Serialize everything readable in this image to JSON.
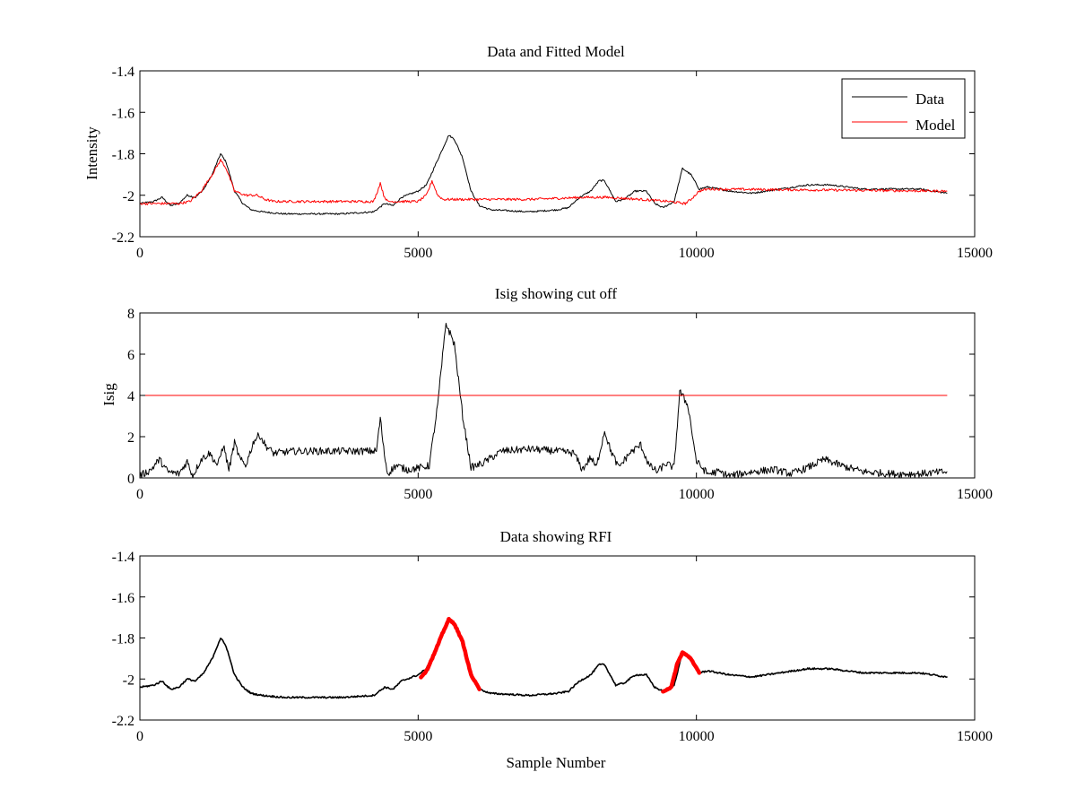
{
  "colors": {
    "data": "#000000",
    "model": "#ff0000",
    "highlight": "#ff0000",
    "axes": "#000000",
    "background": "#ffffff"
  },
  "chart_data": [
    {
      "type": "line",
      "title": "Data and Fitted Model",
      "xlabel": "",
      "ylabel": "Intensity",
      "xlim": [
        0,
        15000
      ],
      "ylim": [
        -2.2,
        -1.4
      ],
      "xticks": [
        0,
        5000,
        10000,
        15000
      ],
      "yticks": [
        -2.2,
        -2,
        -1.8,
        -1.6,
        -1.4
      ],
      "xtick_labels": [
        "0",
        "5000",
        "10000",
        "15000"
      ],
      "ytick_labels": [
        "-2.2",
        "-2",
        "-1.8",
        "-1.6",
        "-1.4"
      ],
      "legend": {
        "position": "top-right",
        "entries": [
          "Data",
          "Model"
        ]
      },
      "series": [
        {
          "name": "Data",
          "color": "#000000",
          "noise": 0.004,
          "points": [
            [
              0,
              -2.04
            ],
            [
              250,
              -2.03
            ],
            [
              400,
              -2.01
            ],
            [
              550,
              -2.05
            ],
            [
              700,
              -2.04
            ],
            [
              850,
              -2.0
            ],
            [
              1000,
              -2.01
            ],
            [
              1150,
              -1.97
            ],
            [
              1300,
              -1.9
            ],
            [
              1450,
              -1.8
            ],
            [
              1550,
              -1.84
            ],
            [
              1700,
              -1.98
            ],
            [
              1850,
              -2.04
            ],
            [
              2000,
              -2.07
            ],
            [
              2200,
              -2.08
            ],
            [
              2600,
              -2.09
            ],
            [
              3000,
              -2.09
            ],
            [
              3600,
              -2.09
            ],
            [
              4200,
              -2.08
            ],
            [
              4400,
              -2.04
            ],
            [
              4550,
              -2.05
            ],
            [
              4700,
              -2.01
            ],
            [
              5000,
              -1.98
            ],
            [
              5150,
              -1.95
            ],
            [
              5300,
              -1.86
            ],
            [
              5450,
              -1.77
            ],
            [
              5550,
              -1.71
            ],
            [
              5650,
              -1.73
            ],
            [
              5800,
              -1.82
            ],
            [
              5950,
              -1.98
            ],
            [
              6100,
              -2.05
            ],
            [
              6300,
              -2.07
            ],
            [
              7000,
              -2.08
            ],
            [
              7500,
              -2.07
            ],
            [
              7700,
              -2.06
            ],
            [
              7900,
              -2.01
            ],
            [
              8100,
              -1.98
            ],
            [
              8250,
              -1.93
            ],
            [
              8350,
              -1.93
            ],
            [
              8450,
              -1.98
            ],
            [
              8550,
              -2.03
            ],
            [
              8700,
              -2.02
            ],
            [
              8900,
              -1.98
            ],
            [
              9100,
              -1.98
            ],
            [
              9250,
              -2.04
            ],
            [
              9400,
              -2.06
            ],
            [
              9600,
              -2.03
            ],
            [
              9750,
              -1.87
            ],
            [
              9900,
              -1.9
            ],
            [
              10050,
              -1.97
            ],
            [
              10200,
              -1.96
            ],
            [
              10600,
              -1.98
            ],
            [
              11000,
              -1.99
            ],
            [
              11500,
              -1.97
            ],
            [
              12000,
              -1.95
            ],
            [
              12400,
              -1.95
            ],
            [
              13000,
              -1.97
            ],
            [
              14000,
              -1.97
            ],
            [
              14500,
              -1.99
            ]
          ]
        },
        {
          "name": "Model",
          "color": "#ff0000",
          "noise": 0.006,
          "points": [
            [
              0,
              -2.04
            ],
            [
              700,
              -2.04
            ],
            [
              900,
              -2.03
            ],
            [
              1100,
              -1.98
            ],
            [
              1300,
              -1.9
            ],
            [
              1450,
              -1.83
            ],
            [
              1550,
              -1.87
            ],
            [
              1700,
              -1.98
            ],
            [
              1900,
              -2.0
            ],
            [
              2100,
              -2.0
            ],
            [
              2250,
              -2.02
            ],
            [
              2400,
              -2.03
            ],
            [
              4200,
              -2.03
            ],
            [
              4270,
              -1.98
            ],
            [
              4320,
              -1.94
            ],
            [
              4380,
              -2.0
            ],
            [
              4450,
              -2.03
            ],
            [
              5000,
              -2.03
            ],
            [
              5150,
              -2.0
            ],
            [
              5250,
              -1.93
            ],
            [
              5350,
              -2.0
            ],
            [
              5450,
              -2.02
            ],
            [
              6000,
              -2.02
            ],
            [
              7000,
              -2.02
            ],
            [
              8000,
              -2.01
            ],
            [
              8400,
              -2.01
            ],
            [
              9000,
              -2.02
            ],
            [
              9500,
              -2.03
            ],
            [
              9800,
              -2.04
            ],
            [
              9900,
              -2.02
            ],
            [
              10050,
              -1.98
            ],
            [
              10200,
              -1.97
            ],
            [
              14500,
              -1.98
            ]
          ]
        }
      ]
    },
    {
      "type": "line",
      "title": "Isig showing cut off",
      "xlabel": "",
      "ylabel": "Isig",
      "xlim": [
        0,
        15000
      ],
      "ylim": [
        0,
        8
      ],
      "xticks": [
        0,
        5000,
        10000,
        15000
      ],
      "yticks": [
        0,
        2,
        4,
        6,
        8
      ],
      "xtick_labels": [
        "0",
        "5000",
        "10000",
        "15000"
      ],
      "ytick_labels": [
        "0",
        "2",
        "4",
        "6",
        "8"
      ],
      "cutoff": 4,
      "series": [
        {
          "name": "Isig",
          "color": "#000000",
          "noise": 0.18,
          "points": [
            [
              0,
              0.1
            ],
            [
              200,
              0.4
            ],
            [
              350,
              0.9
            ],
            [
              500,
              0.3
            ],
            [
              700,
              0.2
            ],
            [
              850,
              0.8
            ],
            [
              950,
              0.1
            ],
            [
              1100,
              0.9
            ],
            [
              1250,
              1.2
            ],
            [
              1400,
              0.6
            ],
            [
              1500,
              1.6
            ],
            [
              1600,
              0.4
            ],
            [
              1700,
              1.7
            ],
            [
              1800,
              0.9
            ],
            [
              1900,
              0.6
            ],
            [
              2050,
              1.8
            ],
            [
              2150,
              2.1
            ],
            [
              2250,
              1.6
            ],
            [
              2400,
              1.2
            ],
            [
              2800,
              1.3
            ],
            [
              3200,
              1.3
            ],
            [
              3600,
              1.3
            ],
            [
              4000,
              1.3
            ],
            [
              4250,
              1.3
            ],
            [
              4320,
              2.9
            ],
            [
              4380,
              1.4
            ],
            [
              4450,
              0.2
            ],
            [
              4600,
              0.6
            ],
            [
              4800,
              0.4
            ],
            [
              5050,
              0.5
            ],
            [
              5200,
              0.6
            ],
            [
              5350,
              3.5
            ],
            [
              5500,
              7.5
            ],
            [
              5650,
              6.5
            ],
            [
              5800,
              3.0
            ],
            [
              5950,
              0.5
            ],
            [
              6150,
              0.7
            ],
            [
              6500,
              1.3
            ],
            [
              7000,
              1.4
            ],
            [
              7500,
              1.3
            ],
            [
              7800,
              1.2
            ],
            [
              7950,
              0.4
            ],
            [
              8100,
              1.0
            ],
            [
              8200,
              0.5
            ],
            [
              8350,
              2.3
            ],
            [
              8450,
              1.4
            ],
            [
              8600,
              0.5
            ],
            [
              8800,
              1.2
            ],
            [
              9000,
              1.6
            ],
            [
              9150,
              0.6
            ],
            [
              9300,
              0.3
            ],
            [
              9450,
              0.7
            ],
            [
              9600,
              0.5
            ],
            [
              9700,
              4.2
            ],
            [
              9850,
              3.5
            ],
            [
              10000,
              0.8
            ],
            [
              10200,
              0.2
            ],
            [
              10400,
              0.3
            ],
            [
              10600,
              0.1
            ],
            [
              11000,
              0.3
            ],
            [
              11400,
              0.4
            ],
            [
              11700,
              0.2
            ],
            [
              12000,
              0.5
            ],
            [
              12300,
              0.9
            ],
            [
              12600,
              0.6
            ],
            [
              13000,
              0.3
            ],
            [
              13500,
              0.2
            ],
            [
              14000,
              0.2
            ],
            [
              14500,
              0.3
            ]
          ]
        },
        {
          "name": "Cut off",
          "color": "#ff0000",
          "noise": 0,
          "points": [
            [
              0,
              4
            ],
            [
              14500,
              4
            ]
          ]
        }
      ]
    },
    {
      "type": "line",
      "title": "Data showing RFI",
      "xlabel": "Sample Number",
      "ylabel": "",
      "xlim": [
        0,
        15000
      ],
      "ylim": [
        -2.2,
        -1.4
      ],
      "xticks": [
        0,
        5000,
        10000,
        15000
      ],
      "yticks": [
        -2.2,
        -2,
        -1.8,
        -1.6,
        -1.4
      ],
      "xtick_labels": [
        "0",
        "5000",
        "10000",
        "15000"
      ],
      "ytick_labels": [
        "-2.2",
        "-2",
        "-1.8",
        "-1.6",
        "-1.4"
      ],
      "series": [
        {
          "name": "Data",
          "color": "#000000",
          "noise": 0.004,
          "points": [
            [
              0,
              -2.04
            ],
            [
              250,
              -2.03
            ],
            [
              400,
              -2.01
            ],
            [
              550,
              -2.05
            ],
            [
              700,
              -2.04
            ],
            [
              850,
              -2.0
            ],
            [
              1000,
              -2.01
            ],
            [
              1150,
              -1.97
            ],
            [
              1300,
              -1.9
            ],
            [
              1450,
              -1.8
            ],
            [
              1550,
              -1.84
            ],
            [
              1700,
              -1.98
            ],
            [
              1850,
              -2.04
            ],
            [
              2000,
              -2.07
            ],
            [
              2200,
              -2.08
            ],
            [
              2600,
              -2.09
            ],
            [
              3000,
              -2.09
            ],
            [
              3600,
              -2.09
            ],
            [
              4200,
              -2.08
            ],
            [
              4400,
              -2.04
            ],
            [
              4550,
              -2.05
            ],
            [
              4700,
              -2.01
            ],
            [
              5000,
              -1.98
            ],
            [
              5150,
              -1.95
            ],
            [
              5300,
              -1.86
            ],
            [
              5450,
              -1.77
            ],
            [
              5550,
              -1.71
            ],
            [
              5650,
              -1.73
            ],
            [
              5800,
              -1.82
            ],
            [
              5950,
              -1.98
            ],
            [
              6100,
              -2.05
            ],
            [
              6300,
              -2.07
            ],
            [
              7000,
              -2.08
            ],
            [
              7500,
              -2.07
            ],
            [
              7700,
              -2.06
            ],
            [
              7900,
              -2.01
            ],
            [
              8100,
              -1.98
            ],
            [
              8250,
              -1.93
            ],
            [
              8350,
              -1.93
            ],
            [
              8450,
              -1.98
            ],
            [
              8550,
              -2.03
            ],
            [
              8700,
              -2.02
            ],
            [
              8900,
              -1.98
            ],
            [
              9100,
              -1.98
            ],
            [
              9250,
              -2.04
            ],
            [
              9400,
              -2.06
            ],
            [
              9600,
              -2.03
            ],
            [
              9750,
              -1.87
            ],
            [
              9900,
              -1.9
            ],
            [
              10050,
              -1.97
            ],
            [
              10200,
              -1.96
            ],
            [
              10600,
              -1.98
            ],
            [
              11000,
              -1.99
            ],
            [
              11500,
              -1.97
            ],
            [
              12000,
              -1.95
            ],
            [
              12400,
              -1.95
            ],
            [
              13000,
              -1.97
            ],
            [
              14000,
              -1.97
            ],
            [
              14500,
              -1.99
            ]
          ]
        },
        {
          "name": "RFI",
          "color": "#ff0000",
          "noise": 0.003,
          "segments": [
            [
              [
                5050,
                -1.99
              ],
              [
                5150,
                -1.96
              ],
              [
                5300,
                -1.87
              ],
              [
                5450,
                -1.77
              ],
              [
                5550,
                -1.71
              ],
              [
                5650,
                -1.73
              ],
              [
                5800,
                -1.82
              ],
              [
                5950,
                -1.98
              ],
              [
                6100,
                -2.05
              ]
            ],
            [
              [
                9400,
                -2.06
              ],
              [
                9550,
                -2.04
              ],
              [
                9650,
                -1.93
              ],
              [
                9750,
                -1.87
              ],
              [
                9900,
                -1.9
              ],
              [
                10050,
                -1.97
              ]
            ]
          ]
        }
      ]
    }
  ]
}
